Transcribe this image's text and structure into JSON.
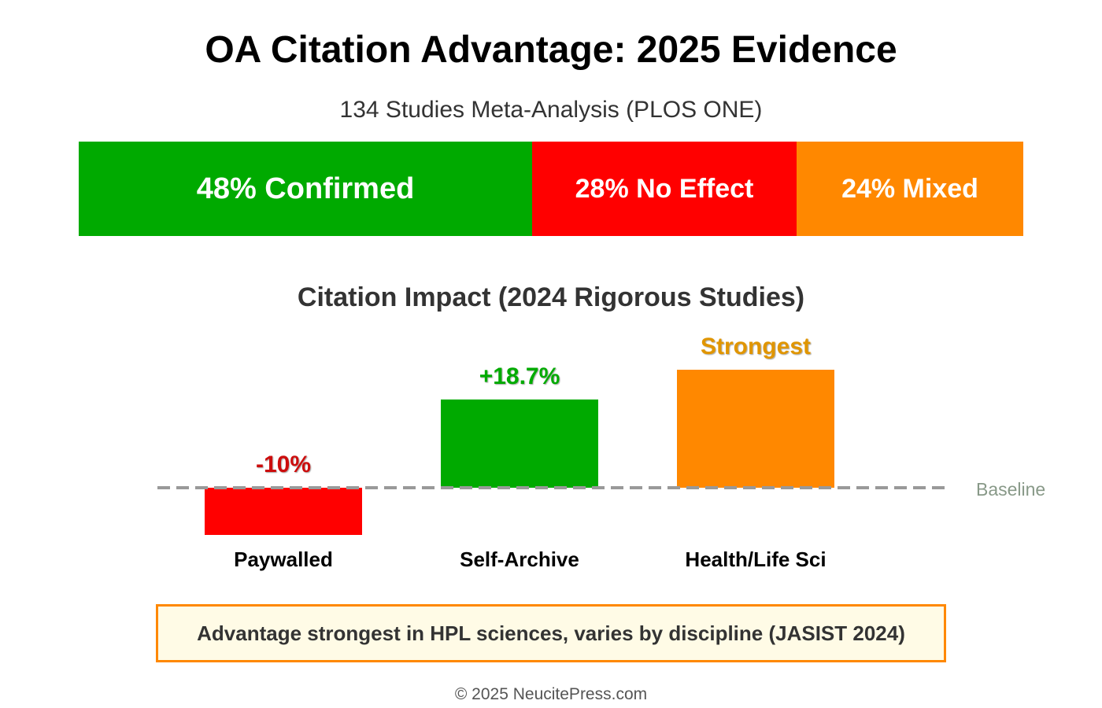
{
  "title": "OA Citation Advantage: 2025 Evidence",
  "subtitle": "134 Studies Meta-Analysis (PLOS ONE)",
  "meta_analysis": {
    "segments": [
      {
        "label": "48% Confirmed",
        "percent": 48,
        "color": "#00aa00"
      },
      {
        "label": "28% No Effect",
        "percent": 28,
        "color": "#ff0000"
      },
      {
        "label": "24% Mixed",
        "percent": 24,
        "color": "#ff8800"
      }
    ]
  },
  "chart_data": {
    "type": "bar",
    "title": "Citation Impact (2024 Rigorous Studies)",
    "categories": [
      "Paywalled",
      "Self-Archive",
      "Health/Life Sci"
    ],
    "values": [
      -10,
      18.7,
      25
    ],
    "data_labels": [
      "-10%",
      "+18.7%",
      "Strongest"
    ],
    "colors": [
      "#ff0000",
      "#00aa00",
      "#ff8800"
    ],
    "label_colors": [
      "#cc1111",
      "#00aa00",
      "#e09500"
    ],
    "baseline_label": "Baseline",
    "baseline_value": 0,
    "ylim": [
      -10,
      25
    ]
  },
  "callout": "Advantage strongest in HPL sciences, varies by discipline (JASIST 2024)",
  "footer": "© 2025 NeucitePress.com"
}
